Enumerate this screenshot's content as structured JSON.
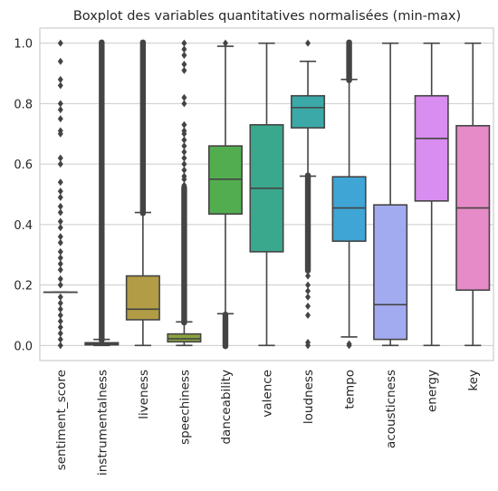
{
  "chart_data": {
    "type": "boxplot",
    "title": "Boxplot des variables quantitatives normalisées (min-max)",
    "xlabel": "",
    "ylabel": "",
    "ylim": [
      -0.05,
      1.05
    ],
    "yticks": [
      0.0,
      0.2,
      0.4,
      0.6,
      0.8,
      1.0
    ],
    "ytick_labels": [
      "0.0",
      "0.2",
      "0.4",
      "0.6",
      "0.8",
      "1.0"
    ],
    "grid": "horizontal",
    "categories": [
      "sentiment_score",
      "instrumentalness",
      "liveness",
      "speechiness",
      "danceability",
      "valence",
      "loudness",
      "tempo",
      "acousticness",
      "energy",
      "key"
    ],
    "colors": [
      "#4d4d4d",
      "#c0866e",
      "#b29c45",
      "#8aa23f",
      "#52ad4f",
      "#3aa88d",
      "#3ba9a8",
      "#3fa5d5",
      "#a3abf0",
      "#d98df0",
      "#e68ac8"
    ],
    "boxes": [
      {
        "name": "sentiment_score",
        "min": 0.176,
        "q1": 0.176,
        "median": 0.176,
        "q3": 0.176,
        "max": 0.176,
        "outliers": [
          1.0,
          0.94,
          0.88,
          0.86,
          0.8,
          0.78,
          0.75,
          0.71,
          0.7,
          0.62,
          0.6,
          0.54,
          0.51,
          0.49,
          0.46,
          0.44,
          0.41,
          0.39,
          0.36,
          0.34,
          0.31,
          0.29,
          0.27,
          0.25,
          0.22,
          0.2,
          0.16,
          0.14,
          0.12,
          0.1,
          0.08,
          0.06,
          0.04,
          0.02,
          0.0
        ],
        "outlier_ranges": []
      },
      {
        "name": "instrumentalness",
        "min": 0.0,
        "q1": 0.002,
        "median": 0.005,
        "q3": 0.009,
        "max": 0.02,
        "outliers": [],
        "outlier_ranges": [
          [
            0.02,
            1.0
          ]
        ]
      },
      {
        "name": "liveness",
        "min": 0.0,
        "q1": 0.085,
        "median": 0.12,
        "q3": 0.23,
        "max": 0.44,
        "outliers": [],
        "outlier_ranges": [
          [
            0.44,
            1.0
          ]
        ]
      },
      {
        "name": "speechiness",
        "min": 0.0,
        "q1": 0.012,
        "median": 0.022,
        "q3": 0.038,
        "max": 0.078,
        "outliers": [
          1.0,
          0.98,
          0.96,
          0.93,
          0.91,
          0.82,
          0.8,
          0.73,
          0.71,
          0.7,
          0.68,
          0.66,
          0.64,
          0.62,
          0.6,
          0.58,
          0.56,
          0.55,
          0.53
        ],
        "outlier_ranges": [
          [
            0.078,
            0.52
          ]
        ]
      },
      {
        "name": "danceability",
        "min": 0.105,
        "q1": 0.435,
        "median": 0.55,
        "q3": 0.66,
        "max": 0.99,
        "outliers": [
          1.0
        ],
        "outlier_ranges": [
          [
            0.0,
            0.1
          ]
        ]
      },
      {
        "name": "valence",
        "min": 0.0,
        "q1": 0.31,
        "median": 0.52,
        "q3": 0.73,
        "max": 1.0,
        "outliers": [],
        "outlier_ranges": []
      },
      {
        "name": "loudness",
        "min": 0.56,
        "q1": 0.72,
        "median": 0.787,
        "q3": 0.826,
        "max": 0.94,
        "outliers": [
          1.0,
          0.1,
          0.13,
          0.16,
          0.18,
          0.2,
          0.23,
          0.0,
          0.01
        ],
        "outlier_ranges": [
          [
            0.25,
            0.56
          ]
        ]
      },
      {
        "name": "tempo",
        "min": 0.028,
        "q1": 0.345,
        "median": 0.455,
        "q3": 0.558,
        "max": 0.88,
        "outliers": [
          0.0,
          0.005
        ],
        "outlier_ranges": [
          [
            0.88,
            1.0
          ]
        ]
      },
      {
        "name": "acousticness",
        "min": 0.0,
        "q1": 0.02,
        "median": 0.135,
        "q3": 0.465,
        "max": 1.0,
        "outliers": [],
        "outlier_ranges": []
      },
      {
        "name": "energy",
        "min": 0.0,
        "q1": 0.478,
        "median": 0.685,
        "q3": 0.826,
        "max": 1.0,
        "outliers": [],
        "outlier_ranges": []
      },
      {
        "name": "key",
        "min": 0.0,
        "q1": 0.183,
        "median": 0.455,
        "q3": 0.727,
        "max": 1.0,
        "outliers": [],
        "outlier_ranges": []
      }
    ]
  }
}
